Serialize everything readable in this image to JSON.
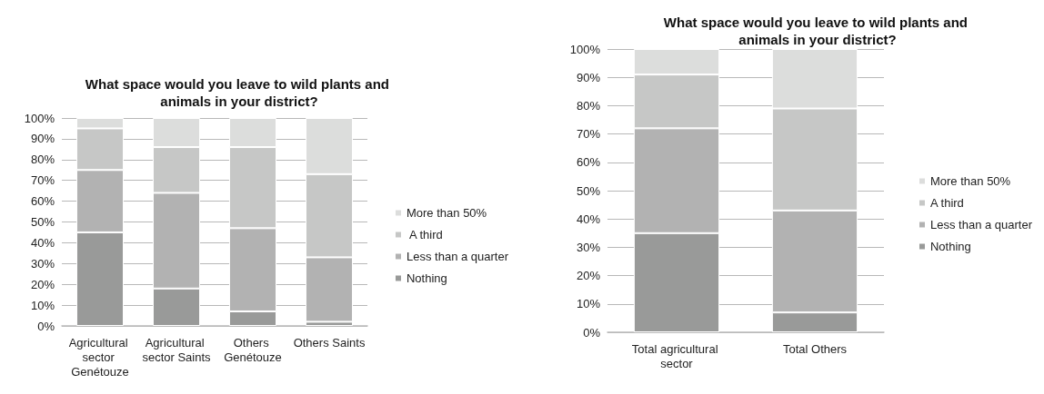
{
  "chart_data": [
    {
      "type": "bar",
      "title": "What space would you leave to wild plants and animals in your district?",
      "categories": [
        "Agricultural sector Genétouze",
        "Agricultural sector Saints",
        "Others Genétouze",
        "Others Saints"
      ],
      "stacked": true,
      "series": [
        {
          "name": "Nothing",
          "color": "#999a99",
          "values": [
            45,
            18,
            7,
            2
          ]
        },
        {
          "name": "Less than a quarter",
          "color": "#b2b2b2",
          "values": [
            30,
            46,
            40,
            31
          ]
        },
        {
          "name": " A third",
          "color": "#c6c7c6",
          "values": [
            20,
            22,
            39,
            40
          ]
        },
        {
          "name": "More than 50%",
          "color": "#dcdddc",
          "values": [
            5,
            14,
            14,
            27
          ]
        }
      ],
      "ylim": [
        0,
        100
      ],
      "yticks": [
        {
          "value": 0,
          "label": "0%"
        },
        {
          "value": 10,
          "label": "10%"
        },
        {
          "value": 20,
          "label": "20%"
        },
        {
          "value": 30,
          "label": "30%"
        },
        {
          "value": 40,
          "label": "40%"
        },
        {
          "value": 50,
          "label": "50%"
        },
        {
          "value": 60,
          "label": "60%"
        },
        {
          "value": 70,
          "label": "70%"
        },
        {
          "value": 80,
          "label": "80%"
        },
        {
          "value": 90,
          "label": "90%"
        },
        {
          "value": 100,
          "label": "100%"
        }
      ],
      "grid": "y",
      "legend": "right"
    },
    {
      "type": "bar",
      "title": "What space would you leave to wild plants and animals in your district?",
      "categories": [
        "Total agricultural sector",
        "Total Others"
      ],
      "stacked": true,
      "series": [
        {
          "name": "Nothing",
          "color": "#999a99",
          "values": [
            35,
            7
          ]
        },
        {
          "name": "Less than a quarter",
          "color": "#b2b2b2",
          "values": [
            37,
            36
          ]
        },
        {
          "name": "A third",
          "color": "#c6c7c6",
          "values": [
            19,
            36
          ]
        },
        {
          "name": "More than 50%",
          "color": "#dcdddc",
          "values": [
            9,
            21
          ]
        }
      ],
      "ylim": [
        0,
        100
      ],
      "yticks": [
        {
          "value": 0,
          "label": "0%"
        },
        {
          "value": 10,
          "label": "10%"
        },
        {
          "value": 20,
          "label": "20%"
        },
        {
          "value": 30,
          "label": "30%"
        },
        {
          "value": 40,
          "label": "40%"
        },
        {
          "value": 50,
          "label": "50%"
        },
        {
          "value": 60,
          "label": "60%"
        },
        {
          "value": 70,
          "label": "70%"
        },
        {
          "value": 80,
          "label": "80%"
        },
        {
          "value": 90,
          "label": "90%"
        },
        {
          "value": 100,
          "label": "100%"
        }
      ],
      "grid": "y",
      "legend": "right"
    }
  ]
}
